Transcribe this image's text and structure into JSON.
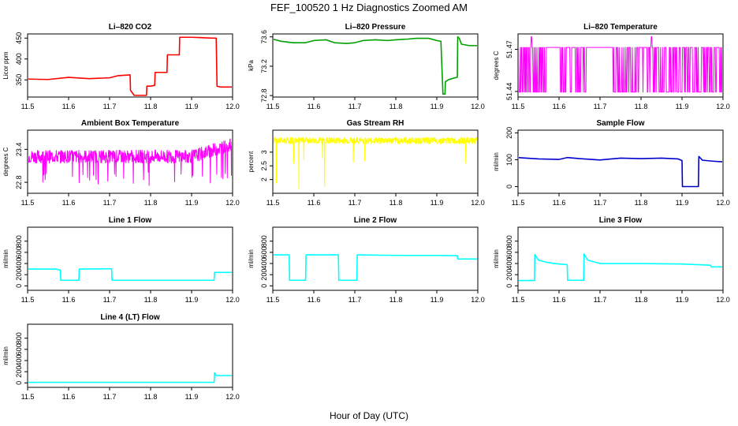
{
  "figure": {
    "title": "FEF_100520  1 Hz Diagnostics Zoomed AM",
    "xlabel": "Hour of Day (UTC)"
  },
  "chart_data": [
    {
      "type": "line",
      "title": "Li–820 CO2",
      "ylabel": "Licor ppm",
      "color": "#ff0000",
      "xlim": [
        11.5,
        12.0
      ],
      "ylim": [
        309,
        460
      ],
      "xticks": [
        11.5,
        11.6,
        11.7,
        11.8,
        11.9,
        12.0
      ],
      "yticks": [
        350,
        400,
        450
      ],
      "series": [
        {
          "name": "CO2",
          "points": [
            [
              11.5,
              352
            ],
            [
              11.55,
              351
            ],
            [
              11.6,
              356
            ],
            [
              11.65,
              353
            ],
            [
              11.7,
              355
            ],
            [
              11.72,
              360
            ],
            [
              11.75,
              362
            ],
            [
              11.751,
              325
            ],
            [
              11.76,
              313
            ],
            [
              11.79,
              313
            ],
            [
              11.791,
              335
            ],
            [
              11.8,
              335
            ],
            [
              11.81,
              337
            ],
            [
              11.811,
              368
            ],
            [
              11.84,
              368
            ],
            [
              11.841,
              410
            ],
            [
              11.87,
              410
            ],
            [
              11.871,
              452
            ],
            [
              11.9,
              452
            ],
            [
              11.95,
              450
            ],
            [
              11.96,
              450
            ],
            [
              11.962,
              335
            ],
            [
              11.97,
              333
            ],
            [
              12.0,
              333
            ]
          ]
        }
      ]
    },
    {
      "type": "line",
      "title": "Li–820 Pressure",
      "ylabel": "kPa",
      "color": "#00a000",
      "xlim": [
        11.5,
        12.0
      ],
      "ylim": [
        72.78,
        73.64
      ],
      "xticks": [
        11.5,
        11.6,
        11.7,
        11.8,
        11.9,
        12.0
      ],
      "yticks": [
        72.8,
        73.2,
        73.6
      ],
      "series": [
        {
          "name": "Pressure",
          "points": [
            [
              11.5,
              73.57
            ],
            [
              11.52,
              73.54
            ],
            [
              11.55,
              73.52
            ],
            [
              11.58,
              73.52
            ],
            [
              11.6,
              73.55
            ],
            [
              11.63,
              73.56
            ],
            [
              11.65,
              73.52
            ],
            [
              11.68,
              73.51
            ],
            [
              11.7,
              73.52
            ],
            [
              11.72,
              73.55
            ],
            [
              11.75,
              73.56
            ],
            [
              11.78,
              73.55
            ],
            [
              11.8,
              73.56
            ],
            [
              11.83,
              73.57
            ],
            [
              11.85,
              73.58
            ],
            [
              11.88,
              73.58
            ],
            [
              11.9,
              73.55
            ],
            [
              11.91,
              73.54
            ],
            [
              11.915,
              72.82
            ],
            [
              11.92,
              72.82
            ],
            [
              11.921,
              72.99
            ],
            [
              11.93,
              73.02
            ],
            [
              11.95,
              73.05
            ],
            [
              11.951,
              73.6
            ],
            [
              11.955,
              73.58
            ],
            [
              11.96,
              73.5
            ],
            [
              11.98,
              73.48
            ],
            [
              12.0,
              73.48
            ]
          ]
        }
      ]
    },
    {
      "type": "line",
      "title": "Li–820 Temperature",
      "ylabel": "degrees C",
      "color": "#ff00ff",
      "xlim": [
        11.5,
        12.0
      ],
      "ylim": [
        51.436,
        51.481
      ],
      "xticks": [
        11.5,
        11.6,
        11.7,
        11.8,
        11.9,
        12.0
      ],
      "yticks": [
        51.44,
        51.47
      ],
      "series": [
        {
          "name": "Temperature",
          "points": []
        }
      ]
    },
    {
      "type": "line",
      "title": "Ambient Box Temperature",
      "ylabel": "degrees C",
      "color": "#ff00ff",
      "xlim": [
        11.5,
        12.0
      ],
      "ylim": [
        22.6,
        23.75
      ],
      "xticks": [
        11.5,
        11.6,
        11.7,
        11.8,
        11.9,
        12.0
      ],
      "yticks": [
        22.8,
        23.4
      ],
      "series": [
        {
          "name": "Box temperature",
          "points": []
        }
      ]
    },
    {
      "type": "line",
      "title": "Gas Stream RH",
      "ylabel": "percent",
      "color": "#ffff00",
      "xlim": [
        11.5,
        12.0
      ],
      "ylim": [
        1.5,
        3.8
      ],
      "xticks": [
        11.5,
        11.6,
        11.7,
        11.8,
        11.9,
        12.0
      ],
      "yticks": [
        2.0,
        2.5,
        3.0
      ],
      "series": [
        {
          "name": "RH",
          "points": []
        }
      ]
    },
    {
      "type": "line",
      "title": "Sample Flow",
      "ylabel": "ml/min",
      "color": "#0000cc",
      "xlim": [
        11.5,
        12.0
      ],
      "ylim": [
        -25,
        210
      ],
      "xticks": [
        11.5,
        11.6,
        11.7,
        11.8,
        11.9,
        12.0
      ],
      "yticks": [
        0,
        100,
        200
      ],
      "series": [
        {
          "name": "Sample flow",
          "points": [
            [
              11.5,
              108
            ],
            [
              11.55,
              103
            ],
            [
              11.6,
              101
            ],
            [
              11.62,
              108
            ],
            [
              11.65,
              104
            ],
            [
              11.7,
              99
            ],
            [
              11.72,
              102
            ],
            [
              11.75,
              106
            ],
            [
              11.8,
              104
            ],
            [
              11.85,
              106
            ],
            [
              11.89,
              103
            ],
            [
              11.9,
              97
            ],
            [
              11.901,
              0
            ],
            [
              11.94,
              0
            ],
            [
              11.941,
              112
            ],
            [
              11.95,
              98
            ],
            [
              11.98,
              94
            ],
            [
              12.0,
              92
            ]
          ]
        }
      ]
    },
    {
      "type": "line",
      "title": "Line 1 Flow",
      "ylabel": "ml/min",
      "color": "#00ffff",
      "xlim": [
        11.5,
        12.0
      ],
      "ylim": [
        -80,
        1050
      ],
      "xticks": [
        11.5,
        11.6,
        11.7,
        11.8,
        11.9,
        12.0
      ],
      "yticks": [
        0,
        200,
        400,
        600,
        800
      ],
      "series": [
        {
          "name": "Line 1",
          "points": [
            [
              11.5,
              300
            ],
            [
              11.57,
              300
            ],
            [
              11.58,
              280
            ],
            [
              11.581,
              100
            ],
            [
              11.625,
              100
            ],
            [
              11.626,
              300
            ],
            [
              11.7,
              305
            ],
            [
              11.705,
              305
            ],
            [
              11.706,
              100
            ],
            [
              11.8,
              100
            ],
            [
              11.9,
              100
            ],
            [
              11.95,
              100
            ],
            [
              11.955,
              100
            ],
            [
              11.956,
              240
            ],
            [
              12.0,
              240
            ]
          ]
        }
      ]
    },
    {
      "type": "line",
      "title": "Line 2 Flow",
      "ylabel": "ml/min",
      "color": "#00ffff",
      "xlim": [
        11.5,
        12.0
      ],
      "ylim": [
        -80,
        1050
      ],
      "xticks": [
        11.5,
        11.6,
        11.7,
        11.8,
        11.9,
        12.0
      ],
      "yticks": [
        0,
        200,
        400,
        600,
        800
      ],
      "series": [
        {
          "name": "Line 2",
          "points": [
            [
              11.5,
              555
            ],
            [
              11.54,
              555
            ],
            [
              11.541,
              100
            ],
            [
              11.58,
              100
            ],
            [
              11.581,
              555
            ],
            [
              11.66,
              555
            ],
            [
              11.661,
              100
            ],
            [
              11.705,
              100
            ],
            [
              11.706,
              555
            ],
            [
              11.8,
              545
            ],
            [
              11.9,
              545
            ],
            [
              11.95,
              540
            ],
            [
              11.951,
              480
            ],
            [
              12.0,
              480
            ]
          ]
        }
      ]
    },
    {
      "type": "line",
      "title": "Line 3 Flow",
      "ylabel": "ml/min",
      "color": "#00ffff",
      "xlim": [
        11.5,
        12.0
      ],
      "ylim": [
        -80,
        1050
      ],
      "xticks": [
        11.5,
        11.6,
        11.7,
        11.8,
        11.9,
        12.0
      ],
      "yticks": [
        0,
        200,
        400,
        600,
        800
      ],
      "series": [
        {
          "name": "Line 3",
          "points": [
            [
              11.5,
              95
            ],
            [
              11.54,
              95
            ],
            [
              11.541,
              560
            ],
            [
              11.55,
              460
            ],
            [
              11.57,
              420
            ],
            [
              11.6,
              390
            ],
            [
              11.62,
              380
            ],
            [
              11.621,
              100
            ],
            [
              11.66,
              100
            ],
            [
              11.661,
              570
            ],
            [
              11.67,
              460
            ],
            [
              11.7,
              400
            ],
            [
              11.8,
              400
            ],
            [
              11.9,
              390
            ],
            [
              11.97,
              370
            ],
            [
              11.971,
              340
            ],
            [
              12.0,
              340
            ]
          ]
        }
      ]
    },
    {
      "type": "line",
      "title": "Line 4 (LT) Flow",
      "ylabel": "ml/min",
      "color": "#00ffff",
      "xlim": [
        11.5,
        12.0
      ],
      "ylim": [
        -80,
        1050
      ],
      "xticks": [
        11.5,
        11.6,
        11.7,
        11.8,
        11.9,
        12.0
      ],
      "yticks": [
        0,
        200,
        400,
        600,
        800
      ],
      "series": [
        {
          "name": "Line 4",
          "points": [
            [
              11.5,
              10
            ],
            [
              11.6,
              10
            ],
            [
              11.7,
              10
            ],
            [
              11.8,
              10
            ],
            [
              11.9,
              10
            ],
            [
              11.955,
              10
            ],
            [
              11.956,
              180
            ],
            [
              11.96,
              130
            ],
            [
              12.0,
              130
            ]
          ]
        }
      ]
    }
  ]
}
